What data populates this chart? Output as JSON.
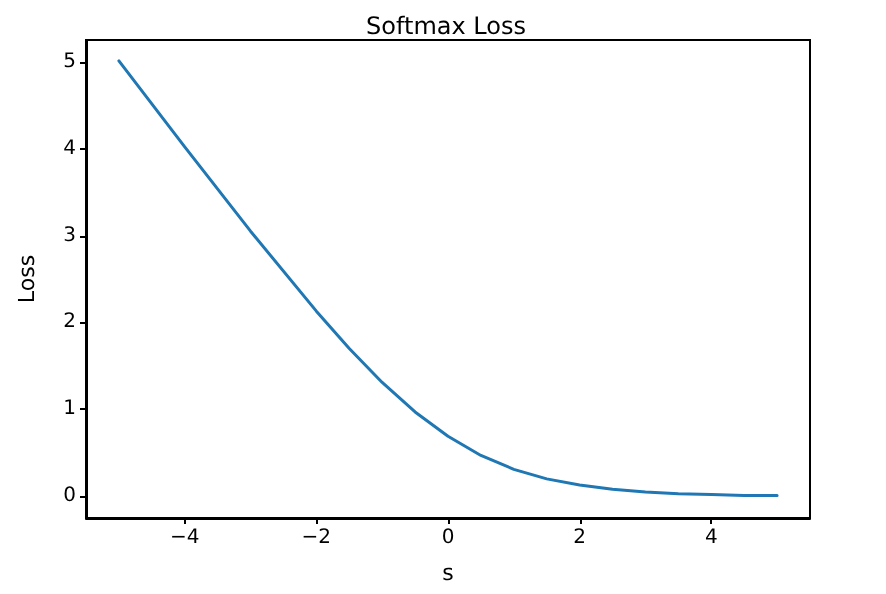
{
  "chart_data": {
    "type": "line",
    "title": "Softmax Loss",
    "xlabel": "s",
    "ylabel": "Loss",
    "x": [
      -5,
      -4,
      -3,
      -2,
      -1.5,
      -1,
      -0.5,
      0,
      0.5,
      1,
      1.5,
      2,
      2.5,
      3,
      3.5,
      4,
      4.5,
      5
    ],
    "series": [
      {
        "color": "#1f77b4",
        "values": [
          5.01,
          4.02,
          3.05,
          2.13,
          1.7,
          1.31,
          0.97,
          0.69,
          0.47,
          0.31,
          0.2,
          0.13,
          0.08,
          0.05,
          0.03,
          0.02,
          0.01,
          0.01
        ]
      }
    ],
    "xlim": [
      -5.5,
      5.5
    ],
    "xticks": [
      {
        "value": -4,
        "label": "−4"
      },
      {
        "value": -2,
        "label": "−2"
      },
      0,
      2,
      4
    ],
    "ylim": [
      -0.25,
      5.25
    ],
    "yticks": [
      0,
      1,
      2,
      3,
      4,
      5
    ],
    "marker": "none",
    "line_style": "solid"
  }
}
